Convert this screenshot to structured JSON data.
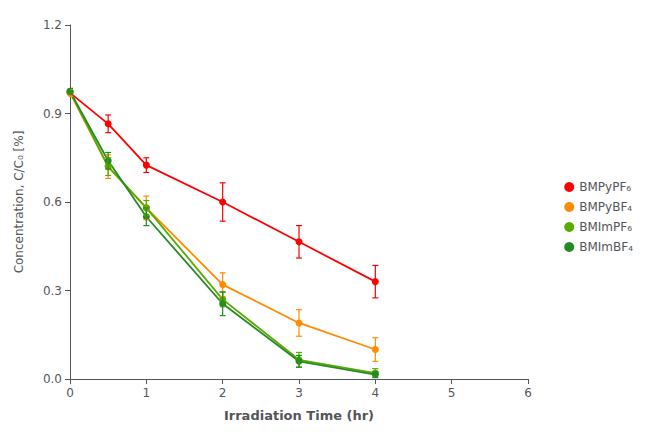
{
  "chart_data": {
    "type": "line",
    "marker": "circle",
    "xlabel": "Irradiation Time (hr)",
    "ylabel": "Concentration, C/C₀ [%]",
    "x": [
      0,
      0.5,
      1,
      2,
      3,
      4
    ],
    "xlim": [
      0,
      6
    ],
    "ylim": [
      0,
      1.2
    ],
    "xticks": [
      0,
      1,
      2,
      3,
      4,
      5,
      6
    ],
    "yticks": [
      {
        "value": 0.0,
        "label": "0.0"
      },
      0.3,
      0.6,
      0.9,
      1.2
    ],
    "grid": false,
    "legend": "right",
    "series": [
      {
        "name": "BMPyPF₆",
        "color": "#ff0000",
        "values": [
          0.97,
          0.865,
          0.725,
          0.6,
          0.465,
          0.33
        ],
        "yerr": [
          0.012,
          0.03,
          0.025,
          0.065,
          0.055,
          0.055
        ]
      },
      {
        "name": "BMPyBF₄",
        "color": "#ff8c00",
        "values": [
          0.97,
          0.72,
          0.58,
          0.32,
          0.19,
          0.1
        ],
        "yerr": [
          0.012,
          0.04,
          0.04,
          0.04,
          0.045,
          0.04
        ]
      },
      {
        "name": "BMImPF₆",
        "color": "#5aaa00",
        "values": [
          0.975,
          0.72,
          0.58,
          0.27,
          0.065,
          0.02
        ],
        "yerr": [
          0.01,
          0.03,
          0.025,
          0.025,
          0.025,
          0.015
        ]
      },
      {
        "name": "BMImBF₄",
        "color": "#228B22",
        "values": [
          0.975,
          0.74,
          0.55,
          0.255,
          0.06,
          0.015
        ],
        "yerr": [
          0.01,
          0.028,
          0.03,
          0.04,
          0.02,
          0.01
        ]
      }
    ]
  }
}
